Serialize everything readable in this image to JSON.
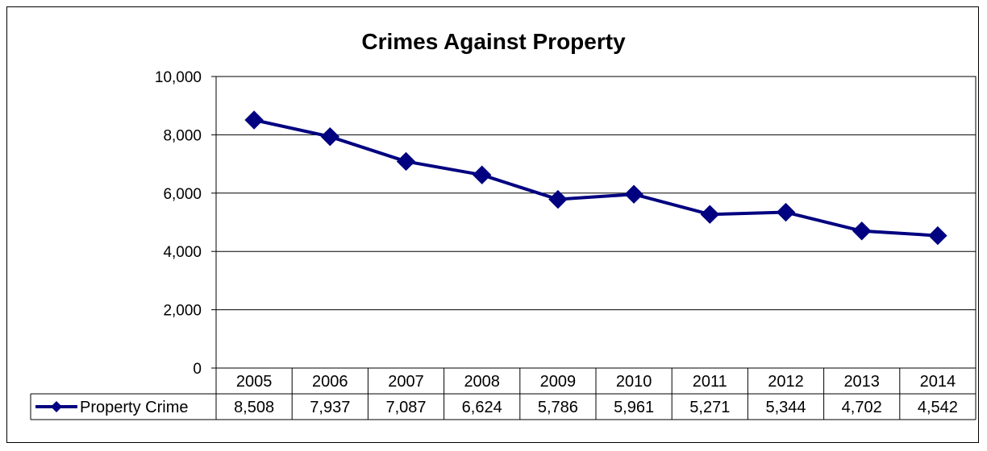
{
  "chart_data": {
    "type": "line",
    "title": "Crimes Against Property",
    "categories": [
      "2005",
      "2006",
      "2007",
      "2008",
      "2009",
      "2010",
      "2011",
      "2012",
      "2013",
      "2014"
    ],
    "series": [
      {
        "name": "Property Crime",
        "values": [
          8508,
          7937,
          7087,
          6624,
          5786,
          5961,
          5271,
          5344,
          4702,
          4542
        ],
        "value_labels": [
          "8,508",
          "7,937",
          "7,087",
          "6,624",
          "5,786",
          "5,961",
          "5,271",
          "5,344",
          "4,702",
          "4,542"
        ],
        "color": "#000080",
        "marker": "diamond"
      }
    ],
    "y_ticks": [
      "0",
      "2,000",
      "4,000",
      "6,000",
      "8,000",
      "10,000"
    ],
    "ylim": [
      0,
      10000
    ],
    "grid": true,
    "legend": "data-table"
  }
}
